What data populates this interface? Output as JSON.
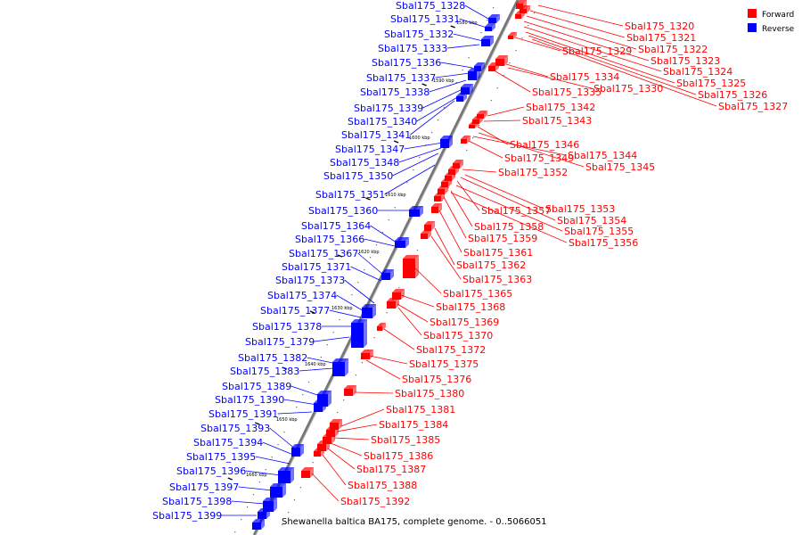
{
  "title": "Shewanella baltica BA175, complete genome. - 0..5066051",
  "legend": [
    {
      "label": "Forward",
      "color": "#ff0000"
    },
    {
      "label": "Reverse",
      "color": "#0000ff"
    }
  ],
  "colors": {
    "forward": "#ff0000",
    "reverse": "#0000ff",
    "backbone": "#888888"
  },
  "ticks": [
    "1580 kbp",
    "1590 kbp",
    "1600 kbp",
    "1610 kbp",
    "1620 kbp",
    "1630 kbp",
    "1640 kbp",
    "1650 kbp",
    "1660 kbp"
  ],
  "forward_genes": [
    "Sbal175_1320",
    "Sbal175_1321",
    "Sbal175_1322",
    "Sbal175_1329",
    "Sbal175_1323",
    "Sbal175_1324",
    "Sbal175_1325",
    "Sbal175_1326",
    "Sbal175_1327",
    "Sbal175_1334",
    "Sbal175_1335",
    "Sbal175_1330",
    "Sbal175_1342",
    "Sbal175_1343",
    "Sbal175_1346",
    "Sbal175_1349",
    "Sbal175_1344",
    "Sbal175_1345",
    "Sbal175_1352",
    "Sbal175_1353",
    "Sbal175_1357",
    "Sbal175_1354",
    "Sbal175_1358",
    "Sbal175_1355",
    "Sbal175_1359",
    "Sbal175_1356",
    "Sbal175_1361",
    "Sbal175_1362",
    "Sbal175_1363",
    "Sbal175_1365",
    "Sbal175_1368",
    "Sbal175_1369",
    "Sbal175_1370",
    "Sbal175_1372",
    "Sbal175_1375",
    "Sbal175_1376",
    "Sbal175_1380",
    "Sbal175_1381",
    "Sbal175_1384",
    "Sbal175_1385",
    "Sbal175_1386",
    "Sbal175_1387",
    "Sbal175_1388",
    "Sbal175_1392"
  ],
  "reverse_genes": [
    "Sbal175_1328",
    "Sbal175_1331",
    "Sbal175_1332",
    "Sbal175_1333",
    "Sbal175_1336",
    "Sbal175_1337",
    "Sbal175_1338",
    "Sbal175_1339",
    "Sbal175_1340",
    "Sbal175_1341",
    "Sbal175_1347",
    "Sbal175_1348",
    "Sbal175_1350",
    "Sbal175_1351",
    "Sbal175_1360",
    "Sbal175_1364",
    "Sbal175_1366",
    "Sbal175_1367",
    "Sbal175_1371",
    "Sbal175_1373",
    "Sbal175_1374",
    "Sbal175_1377",
    "Sbal175_1378",
    "Sbal175_1379",
    "Sbal175_1382",
    "Sbal175_1383",
    "Sbal175_1389",
    "Sbal175_1390",
    "Sbal175_1391",
    "Sbal175_1393",
    "Sbal175_1394",
    "Sbal175_1395",
    "Sbal175_1396",
    "Sbal175_1397",
    "Sbal175_1398",
    "Sbal175_1399"
  ]
}
